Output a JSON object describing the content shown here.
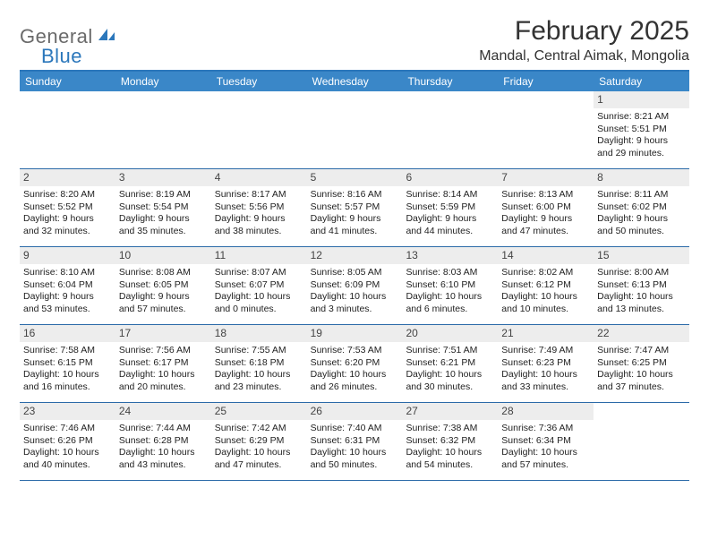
{
  "logo": {
    "text_general": "General",
    "text_blue": "Blue"
  },
  "title": "February 2025",
  "location": "Mandal, Central Aimak, Mongolia",
  "day_headers": [
    "Sunday",
    "Monday",
    "Tuesday",
    "Wednesday",
    "Thursday",
    "Friday",
    "Saturday"
  ],
  "colors": {
    "header_bg": "#3a87c8",
    "accent": "#2b77bb",
    "daynum_bg": "#ededed",
    "text": "#222222",
    "logo_gray": "#6a6a6a"
  },
  "weeks": [
    [
      null,
      null,
      null,
      null,
      null,
      null,
      {
        "num": "1",
        "sunrise": "Sunrise: 8:21 AM",
        "sunset": "Sunset: 5:51 PM",
        "daylight": "Daylight: 9 hours and 29 minutes."
      }
    ],
    [
      {
        "num": "2",
        "sunrise": "Sunrise: 8:20 AM",
        "sunset": "Sunset: 5:52 PM",
        "daylight": "Daylight: 9 hours and 32 minutes."
      },
      {
        "num": "3",
        "sunrise": "Sunrise: 8:19 AM",
        "sunset": "Sunset: 5:54 PM",
        "daylight": "Daylight: 9 hours and 35 minutes."
      },
      {
        "num": "4",
        "sunrise": "Sunrise: 8:17 AM",
        "sunset": "Sunset: 5:56 PM",
        "daylight": "Daylight: 9 hours and 38 minutes."
      },
      {
        "num": "5",
        "sunrise": "Sunrise: 8:16 AM",
        "sunset": "Sunset: 5:57 PM",
        "daylight": "Daylight: 9 hours and 41 minutes."
      },
      {
        "num": "6",
        "sunrise": "Sunrise: 8:14 AM",
        "sunset": "Sunset: 5:59 PM",
        "daylight": "Daylight: 9 hours and 44 minutes."
      },
      {
        "num": "7",
        "sunrise": "Sunrise: 8:13 AM",
        "sunset": "Sunset: 6:00 PM",
        "daylight": "Daylight: 9 hours and 47 minutes."
      },
      {
        "num": "8",
        "sunrise": "Sunrise: 8:11 AM",
        "sunset": "Sunset: 6:02 PM",
        "daylight": "Daylight: 9 hours and 50 minutes."
      }
    ],
    [
      {
        "num": "9",
        "sunrise": "Sunrise: 8:10 AM",
        "sunset": "Sunset: 6:04 PM",
        "daylight": "Daylight: 9 hours and 53 minutes."
      },
      {
        "num": "10",
        "sunrise": "Sunrise: 8:08 AM",
        "sunset": "Sunset: 6:05 PM",
        "daylight": "Daylight: 9 hours and 57 minutes."
      },
      {
        "num": "11",
        "sunrise": "Sunrise: 8:07 AM",
        "sunset": "Sunset: 6:07 PM",
        "daylight": "Daylight: 10 hours and 0 minutes."
      },
      {
        "num": "12",
        "sunrise": "Sunrise: 8:05 AM",
        "sunset": "Sunset: 6:09 PM",
        "daylight": "Daylight: 10 hours and 3 minutes."
      },
      {
        "num": "13",
        "sunrise": "Sunrise: 8:03 AM",
        "sunset": "Sunset: 6:10 PM",
        "daylight": "Daylight: 10 hours and 6 minutes."
      },
      {
        "num": "14",
        "sunrise": "Sunrise: 8:02 AM",
        "sunset": "Sunset: 6:12 PM",
        "daylight": "Daylight: 10 hours and 10 minutes."
      },
      {
        "num": "15",
        "sunrise": "Sunrise: 8:00 AM",
        "sunset": "Sunset: 6:13 PM",
        "daylight": "Daylight: 10 hours and 13 minutes."
      }
    ],
    [
      {
        "num": "16",
        "sunrise": "Sunrise: 7:58 AM",
        "sunset": "Sunset: 6:15 PM",
        "daylight": "Daylight: 10 hours and 16 minutes."
      },
      {
        "num": "17",
        "sunrise": "Sunrise: 7:56 AM",
        "sunset": "Sunset: 6:17 PM",
        "daylight": "Daylight: 10 hours and 20 minutes."
      },
      {
        "num": "18",
        "sunrise": "Sunrise: 7:55 AM",
        "sunset": "Sunset: 6:18 PM",
        "daylight": "Daylight: 10 hours and 23 minutes."
      },
      {
        "num": "19",
        "sunrise": "Sunrise: 7:53 AM",
        "sunset": "Sunset: 6:20 PM",
        "daylight": "Daylight: 10 hours and 26 minutes."
      },
      {
        "num": "20",
        "sunrise": "Sunrise: 7:51 AM",
        "sunset": "Sunset: 6:21 PM",
        "daylight": "Daylight: 10 hours and 30 minutes."
      },
      {
        "num": "21",
        "sunrise": "Sunrise: 7:49 AM",
        "sunset": "Sunset: 6:23 PM",
        "daylight": "Daylight: 10 hours and 33 minutes."
      },
      {
        "num": "22",
        "sunrise": "Sunrise: 7:47 AM",
        "sunset": "Sunset: 6:25 PM",
        "daylight": "Daylight: 10 hours and 37 minutes."
      }
    ],
    [
      {
        "num": "23",
        "sunrise": "Sunrise: 7:46 AM",
        "sunset": "Sunset: 6:26 PM",
        "daylight": "Daylight: 10 hours and 40 minutes."
      },
      {
        "num": "24",
        "sunrise": "Sunrise: 7:44 AM",
        "sunset": "Sunset: 6:28 PM",
        "daylight": "Daylight: 10 hours and 43 minutes."
      },
      {
        "num": "25",
        "sunrise": "Sunrise: 7:42 AM",
        "sunset": "Sunset: 6:29 PM",
        "daylight": "Daylight: 10 hours and 47 minutes."
      },
      {
        "num": "26",
        "sunrise": "Sunrise: 7:40 AM",
        "sunset": "Sunset: 6:31 PM",
        "daylight": "Daylight: 10 hours and 50 minutes."
      },
      {
        "num": "27",
        "sunrise": "Sunrise: 7:38 AM",
        "sunset": "Sunset: 6:32 PM",
        "daylight": "Daylight: 10 hours and 54 minutes."
      },
      {
        "num": "28",
        "sunrise": "Sunrise: 7:36 AM",
        "sunset": "Sunset: 6:34 PM",
        "daylight": "Daylight: 10 hours and 57 minutes."
      },
      null
    ]
  ]
}
